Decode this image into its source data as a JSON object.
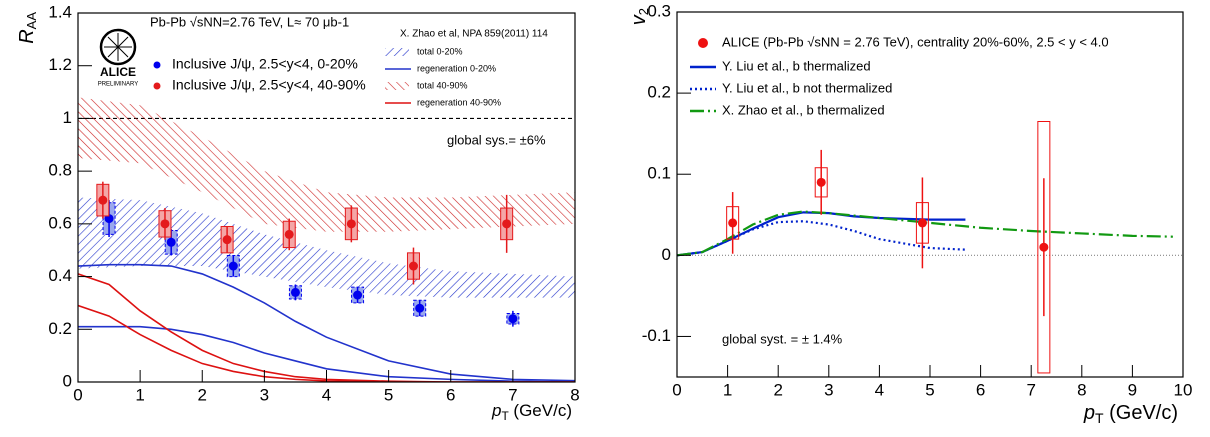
{
  "chart_data": [
    {
      "type": "physics",
      "ylabel": "R",
      "ylabel_sub": "AA",
      "xlabel": "p",
      "xlabel_sub": "T",
      "xlabel_unit": " (GeV/c)",
      "xlim": [
        0,
        8
      ],
      "ylim": [
        0,
        1.4
      ],
      "xticks": [
        0,
        1,
        2,
        3,
        4,
        5,
        6,
        7,
        8
      ],
      "yticks": [
        0,
        0.2,
        0.4,
        0.6,
        0.8,
        1,
        1.2,
        1.4
      ],
      "ref_line": 1,
      "header": "Pb-Pb √sNN=2.76 TeV, L≈ 70 μb-1",
      "logo_text": "ALICE",
      "logo_subtext": "PRELIMINARY",
      "model_ref": "X. Zhao et al, NPA 859(2011) 114",
      "global_sys": "global sys.= ±6%",
      "series": [
        {
          "name": "Inclusive J/ψ, 2.5<y<4, 0-20%",
          "kind": "points",
          "color": "#0000ee",
          "x": [
            0.5,
            1.5,
            2.5,
            3.5,
            4.5,
            5.5,
            7.0
          ],
          "values": [
            0.62,
            0.53,
            0.44,
            0.34,
            0.33,
            0.28,
            0.24
          ],
          "errors": [
            0.07,
            0.05,
            0.04,
            0.03,
            0.03,
            0.03,
            0.03
          ],
          "sys": [
            0.06,
            0.045,
            0.04,
            0.025,
            0.03,
            0.03,
            0.02
          ]
        },
        {
          "name": "Inclusive J/ψ, 2.5<y<4, 40-90%",
          "kind": "points",
          "color": "#e41a1c",
          "x": [
            0.4,
            1.4,
            2.4,
            3.4,
            4.4,
            5.4,
            6.9
          ],
          "values": [
            0.69,
            0.6,
            0.54,
            0.56,
            0.6,
            0.44,
            0.6
          ],
          "errors": [
            0.07,
            0.06,
            0.05,
            0.06,
            0.07,
            0.07,
            0.11
          ],
          "sys": [
            0.06,
            0.05,
            0.05,
            0.05,
            0.06,
            0.05,
            0.06
          ]
        },
        {
          "name": "total 0-20%",
          "kind": "band",
          "color": "#2233cc",
          "hatch": "up",
          "x": [
            0,
            1,
            2,
            3,
            4,
            5,
            6,
            7,
            8
          ],
          "lower": [
            0.43,
            0.44,
            0.44,
            0.4,
            0.36,
            0.33,
            0.32,
            0.32,
            0.32
          ],
          "upper": [
            0.7,
            0.69,
            0.64,
            0.56,
            0.5,
            0.45,
            0.42,
            0.41,
            0.4
          ]
        },
        {
          "name": "regeneration 0-20%",
          "kind": "pair",
          "color": "#2233cc",
          "x": [
            0,
            0.5,
            1,
            1.5,
            2,
            2.5,
            3,
            3.5,
            4,
            5,
            6,
            7,
            8
          ],
          "lower": [
            0.21,
            0.21,
            0.21,
            0.2,
            0.18,
            0.15,
            0.11,
            0.08,
            0.05,
            0.02,
            0.01,
            0.003,
            0
          ],
          "upper": [
            0.44,
            0.445,
            0.445,
            0.44,
            0.41,
            0.36,
            0.3,
            0.23,
            0.17,
            0.08,
            0.03,
            0.01,
            0.005
          ]
        },
        {
          "name": "total 40-90%",
          "kind": "band",
          "color": "#cc2222",
          "hatch": "down",
          "x": [
            0,
            1,
            2,
            3,
            4,
            5,
            6,
            7,
            8
          ],
          "lower": [
            0.85,
            0.83,
            0.72,
            0.6,
            0.57,
            0.57,
            0.58,
            0.59,
            0.6
          ],
          "upper": [
            1.08,
            1.05,
            0.93,
            0.8,
            0.72,
            0.7,
            0.7,
            0.71,
            0.72
          ]
        },
        {
          "name": "regeneration 40-90%",
          "kind": "pair",
          "color": "#dd1111",
          "x": [
            0,
            0.5,
            1,
            1.5,
            2,
            2.5,
            3,
            3.5,
            4,
            5,
            6,
            7,
            8
          ],
          "lower": [
            0.29,
            0.25,
            0.18,
            0.12,
            0.07,
            0.04,
            0.02,
            0.01,
            0.004,
            0,
            0,
            0,
            0
          ],
          "upper": [
            0.41,
            0.37,
            0.27,
            0.19,
            0.12,
            0.07,
            0.04,
            0.02,
            0.01,
            0.003,
            0,
            0,
            0
          ]
        }
      ]
    },
    {
      "type": "physics",
      "ylabel": "v",
      "ylabel_sub": "2",
      "xlabel": "p",
      "xlabel_sub": "T",
      "xlabel_unit": " (GeV/c)",
      "xlim": [
        0,
        10
      ],
      "ylim": [
        -0.15,
        0.3
      ],
      "xticks": [
        0,
        1,
        2,
        3,
        4,
        5,
        6,
        7,
        8,
        9,
        10
      ],
      "yticks": [
        -0.1,
        0,
        0.1,
        0.2,
        0.3
      ],
      "ref_line": 0,
      "global_sys": "global syst. = ± 1.4%",
      "series": [
        {
          "name": "ALICE (Pb-Pb √sNN = 2.76 TeV), centrality 20%-60%, 2.5 < y < 4.0",
          "kind": "points",
          "color": "#ee1111",
          "x": [
            1.1,
            2.85,
            4.85,
            7.25
          ],
          "values": [
            0.04,
            0.09,
            0.04,
            0.01
          ],
          "errors": [
            0.038,
            0.04,
            0.056,
            0.085
          ],
          "sys": [
            0.02,
            0.018,
            0.025,
            0.155
          ]
        },
        {
          "name": "Y. Liu et al., b thermalized",
          "kind": "line",
          "color": "#0022cc",
          "dash": "solid",
          "x": [
            0,
            0.5,
            1,
            1.5,
            2,
            2.5,
            3,
            3.5,
            4,
            5,
            5.7
          ],
          "values": [
            0,
            0.004,
            0.018,
            0.033,
            0.047,
            0.053,
            0.052,
            0.048,
            0.046,
            0.044,
            0.044
          ]
        },
        {
          "name": "Y. Liu et al., b not thermalized",
          "kind": "line",
          "color": "#0022cc",
          "dash": "dotted",
          "x": [
            0,
            0.5,
            1,
            1.5,
            2,
            2.5,
            3,
            3.5,
            4,
            5,
            5.7
          ],
          "values": [
            0,
            0.004,
            0.018,
            0.032,
            0.041,
            0.042,
            0.038,
            0.03,
            0.02,
            0.009,
            0.007
          ]
        },
        {
          "name": "X. Zhao et al., b thermalized",
          "kind": "line",
          "color": "#119911",
          "dash": "dashdot",
          "x": [
            0,
            0.5,
            1,
            1.5,
            2,
            2.5,
            3,
            4,
            5,
            6,
            7,
            8,
            9,
            9.8
          ],
          "values": [
            0,
            0.004,
            0.02,
            0.038,
            0.05,
            0.054,
            0.052,
            0.046,
            0.04,
            0.034,
            0.03,
            0.027,
            0.024,
            0.023
          ]
        }
      ]
    }
  ]
}
